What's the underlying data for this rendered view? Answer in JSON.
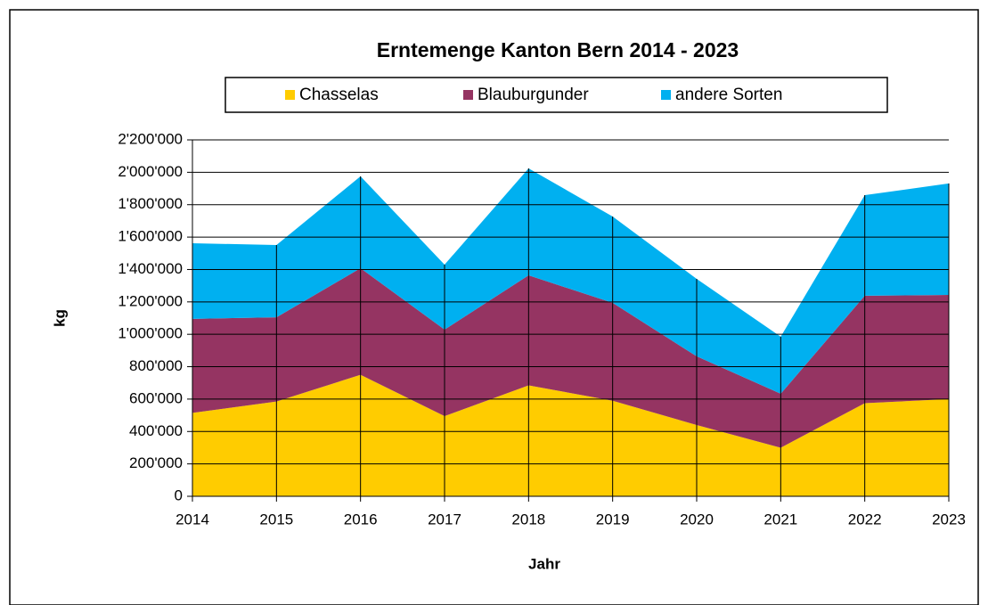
{
  "chart_data": {
    "type": "stacked_area",
    "title": "Erntemenge Kanton Bern 2014 - 2023",
    "xlabel": "Jahr",
    "ylabel": "kg",
    "categories": [
      "2014",
      "2015",
      "2016",
      "2017",
      "2018",
      "2019",
      "2020",
      "2021",
      "2022",
      "2023"
    ],
    "series": [
      {
        "name": "Chasselas",
        "color": "#ffcc00",
        "values": [
          515000,
          585000,
          750000,
          495000,
          685000,
          590000,
          440000,
          300000,
          575000,
          600000
        ]
      },
      {
        "name": "Blauburgunder",
        "color": "#953462",
        "values": [
          580000,
          520000,
          658000,
          534000,
          679000,
          604000,
          424000,
          333000,
          663000,
          643000
        ]
      },
      {
        "name": "andere Sorten",
        "color": "#00b0f0",
        "values": [
          467000,
          446000,
          567000,
          401000,
          660000,
          533000,
          478000,
          352000,
          621000,
          688000
        ]
      }
    ],
    "ylim": [
      0,
      2200000
    ],
    "yticks": [
      0,
      {
        "value": 200000,
        "label": "200'000"
      },
      {
        "value": 400000,
        "label": "400'000"
      },
      {
        "value": 600000,
        "label": "600'000"
      },
      {
        "value": 800000,
        "label": "800'000"
      },
      {
        "value": 1000000,
        "label": "1'000'000"
      },
      {
        "value": 1200000,
        "label": "1'200'000"
      },
      {
        "value": 1400000,
        "label": "1'400'000"
      },
      {
        "value": 1600000,
        "label": "1'600'000"
      },
      {
        "value": 1800000,
        "label": "1'800'000"
      },
      {
        "value": 2000000,
        "label": "2'000'000"
      },
      {
        "value": 2200000,
        "label": "2'200'000"
      }
    ],
    "grid": true,
    "legend": "top"
  }
}
